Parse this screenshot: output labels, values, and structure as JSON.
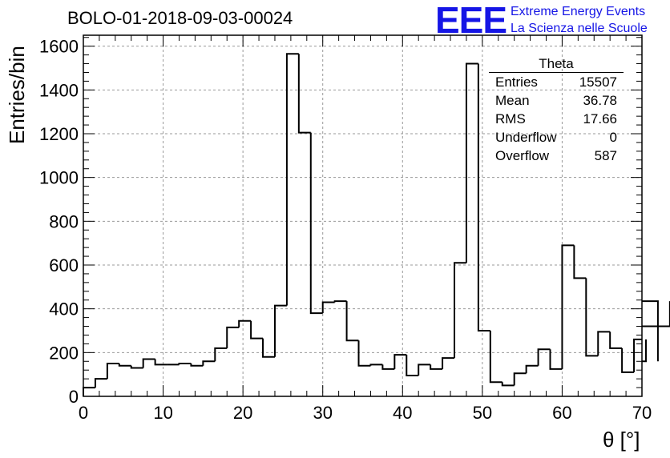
{
  "chart_data": {
    "type": "bar",
    "title": "BOLO-01-2018-09-03-00024",
    "xlabel": "θ [°]",
    "ylabel": "Entries/bin",
    "xlim": [
      0,
      70
    ],
    "ylim": [
      0,
      1650
    ],
    "xticks": [
      0,
      10,
      20,
      30,
      40,
      50,
      60,
      70
    ],
    "yticks": [
      0,
      200,
      400,
      600,
      800,
      1000,
      1200,
      1400,
      1600
    ],
    "grid": true,
    "bin_width": 1.5,
    "bin_edges_start": 0,
    "values": [
      40,
      80,
      150,
      140,
      130,
      170,
      145,
      145,
      150,
      140,
      160,
      220,
      315,
      345,
      265,
      180,
      415,
      1565,
      1205,
      380,
      430,
      435,
      255,
      140,
      145,
      125,
      190,
      95,
      145,
      125,
      175,
      610,
      1520,
      300,
      65,
      50,
      105,
      140,
      215,
      125,
      690,
      540,
      185,
      295,
      220,
      110,
      260,
      160,
      435,
      320
    ]
  },
  "stats_box": {
    "name": "Theta",
    "rows": [
      {
        "label": "Entries",
        "value": "15507"
      },
      {
        "label": "Mean",
        "value": "36.78"
      },
      {
        "label": "RMS",
        "value": "17.66"
      },
      {
        "label": "Underflow",
        "value": "0"
      },
      {
        "label": "Overflow",
        "value": "587"
      }
    ]
  },
  "logo": {
    "mark": "EEE",
    "line1": "Extreme Energy Events",
    "line2": "La Scienza nelle Scuole",
    "color": "#1515e6"
  }
}
